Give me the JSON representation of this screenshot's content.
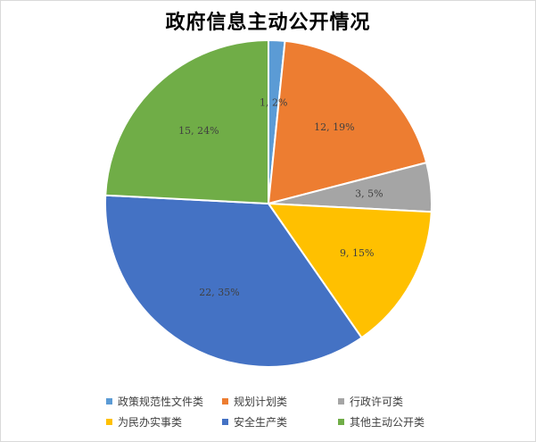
{
  "chart_data": {
    "type": "pie",
    "title": "政府信息主动公开情况",
    "categories": [
      "政策规范性文件类",
      "规划计划类",
      "行政许可类",
      "为民办实事类",
      "安全生产类",
      "其他主动公开类"
    ],
    "values": [
      1,
      12,
      3,
      9,
      22,
      15
    ],
    "data_labels": [
      "1, 2%",
      "12, 19%",
      "3, 5%",
      "9, 15%",
      "22, 35%",
      "15, 24%"
    ],
    "colors": [
      "#5b9bd5",
      "#ed7d31",
      "#a5a5a5",
      "#ffc000",
      "#4472c4",
      "#70ad47"
    ],
    "legend_position": "bottom",
    "start_angle": "12 o'clock",
    "direction": "clockwise"
  }
}
